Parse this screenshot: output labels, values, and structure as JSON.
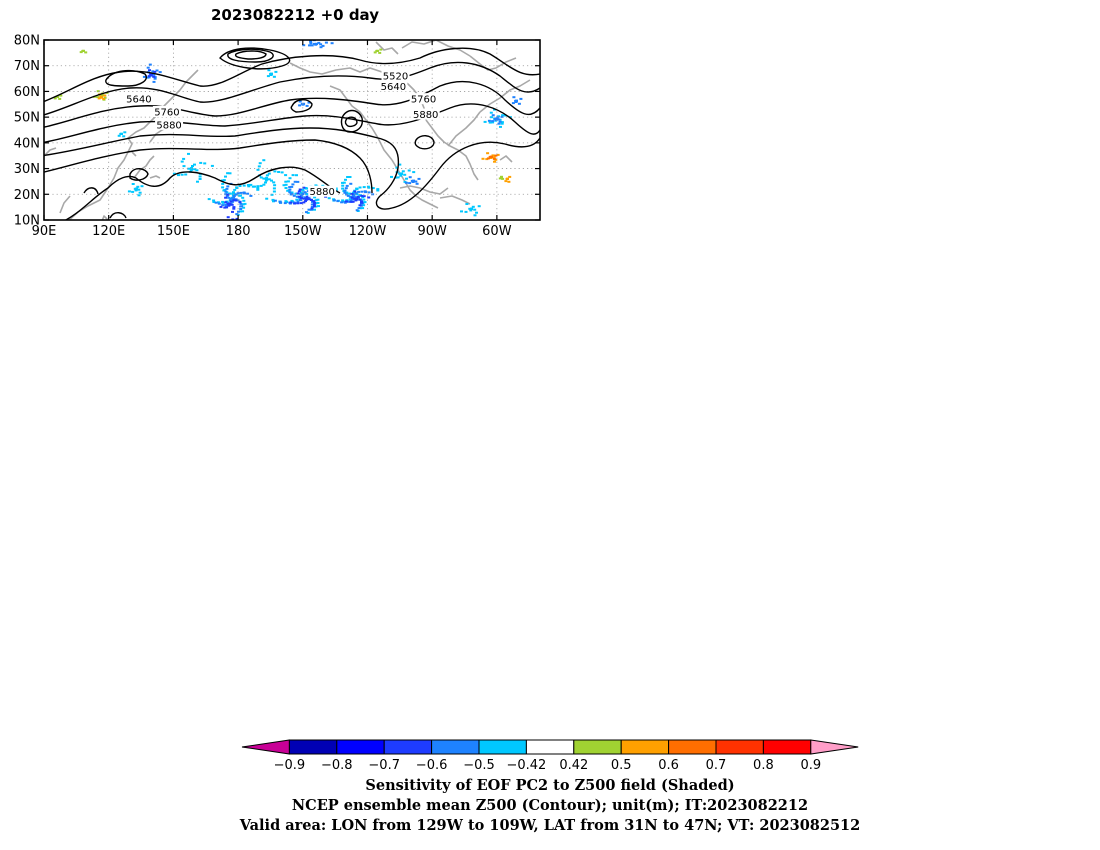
{
  "title": "2023082212  +0 day",
  "chart_data": {
    "type": "heatmap",
    "title": "2023082212  +0 day",
    "x_ticks": [
      "90E",
      "120E",
      "150E",
      "180",
      "150W",
      "120W",
      "90W",
      "60W"
    ],
    "x_tick_lons": [
      90,
      120,
      150,
      180,
      210,
      240,
      270,
      300
    ],
    "x_range": [
      90,
      320
    ],
    "y_ticks": [
      "80N",
      "70N",
      "60N",
      "50N",
      "40N",
      "30N",
      "20N",
      "10N"
    ],
    "y_tick_lats": [
      80,
      70,
      60,
      50,
      40,
      30,
      20,
      10
    ],
    "y_range": [
      10,
      80
    ],
    "grid": true,
    "contour_labels": [
      {
        "text": "5520",
        "lon": 253,
        "lat": 66
      },
      {
        "text": "5640",
        "lon": 252,
        "lat": 62
      },
      {
        "text": "5640",
        "lon": 134,
        "lat": 57
      },
      {
        "text": "5760",
        "lon": 147,
        "lat": 52
      },
      {
        "text": "5760",
        "lon": 266,
        "lat": 57
      },
      {
        "text": "5880",
        "lon": 148,
        "lat": 47
      },
      {
        "text": "5880",
        "lon": 267,
        "lat": 51
      },
      {
        "text": "5880",
        "lon": 219,
        "lat": 21
      }
    ],
    "colorbar": {
      "boundaries": [
        "-0.9",
        "-0.8",
        "-0.7",
        "-0.6",
        "-0.5",
        "-0.42",
        "0.42",
        "0.5",
        "0.6",
        "0.7",
        "0.8",
        "0.9"
      ],
      "colors": [
        "#c80096",
        "#0000b4",
        "#0000ff",
        "#1e3cff",
        "#1e82ff",
        "#00c8ff",
        "#ffffff",
        "#a0d232",
        "#ffa000",
        "#ff6e00",
        "#ff3200",
        "#ff0000",
        "#ff9ec8"
      ]
    }
  },
  "captions": [
    "Sensitivity of EOF PC2 to Z500 field (Shaded)",
    "NCEP ensemble mean Z500 (Contour); unit(m); IT:2023082212",
    "Valid area: LON from 129W to 109W, LAT from 31N to 47N; VT: 2023082512"
  ]
}
